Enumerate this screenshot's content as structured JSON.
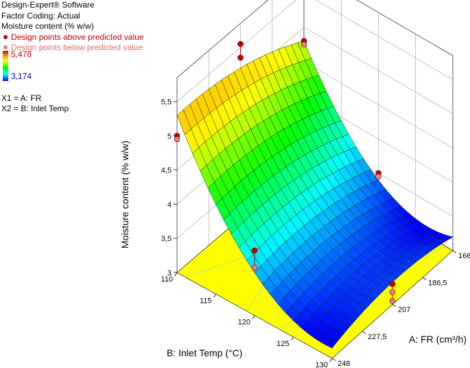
{
  "legend": {
    "software": "Design-Expert® Software",
    "coding": "Factor Coding: Actual",
    "response": "Moisture content (% w/w)",
    "above": "Design points above predicted value",
    "below": "Design points below predicted value",
    "max": "5,478",
    "min": "3,174",
    "x1": "X1 = A: FR",
    "x2": "X2 = B: Inlet Temp"
  },
  "colors": {
    "above": "#c00000",
    "below": "#e08080",
    "floor": "#ffff00",
    "gradient": [
      "#0000ff",
      "#00ffff",
      "#00ff00",
      "#ffff00",
      "#ffa500"
    ]
  },
  "chart_data": {
    "type": "surface",
    "xlabel": "A: FR (cm³/h)",
    "ylabel": "B: Inlet Temp (°C)",
    "zlabel": "Moisture content (% w/w)",
    "x_ticks": [
      "166",
      "186,5",
      "207",
      "227,5",
      "248"
    ],
    "y_ticks": [
      "110",
      "115",
      "120",
      "125",
      "130"
    ],
    "z_ticks": [
      "3",
      "3,5",
      "4",
      "4,5",
      "5",
      "5,5"
    ],
    "xlim": [
      166,
      248
    ],
    "ylim": [
      110,
      130
    ],
    "zlim": [
      3,
      5.5
    ],
    "zrange": [
      3.174,
      5.478
    ],
    "corners": {
      "fr166_t110": 4.8,
      "fr248_t110": 5.3,
      "fr166_t130": 3.2,
      "fr248_t130": 3.15
    },
    "design_points": [
      {
        "fr": 248,
        "temp": 110,
        "values": [
          5.0,
          4.95
        ],
        "type": [
          "above",
          "below"
        ]
      },
      {
        "fr": 207,
        "temp": 110,
        "values": [
          5.55,
          5.35
        ],
        "type": [
          "above",
          "above"
        ]
      },
      {
        "fr": 166,
        "temp": 110,
        "values": [
          4.8,
          4.75
        ],
        "type": [
          "above",
          "below"
        ]
      },
      {
        "fr": 248,
        "temp": 120,
        "values": [
          3.95,
          3.7
        ],
        "type": [
          "above",
          "below"
        ]
      },
      {
        "fr": 166,
        "temp": 120,
        "values": [
          3.5,
          3.45
        ],
        "type": [
          "above",
          "below"
        ]
      },
      {
        "fr": 207,
        "temp": 130,
        "values": [
          3.3,
          3.18,
          3.05
        ],
        "type": [
          "above",
          "below",
          "below"
        ]
      }
    ]
  }
}
